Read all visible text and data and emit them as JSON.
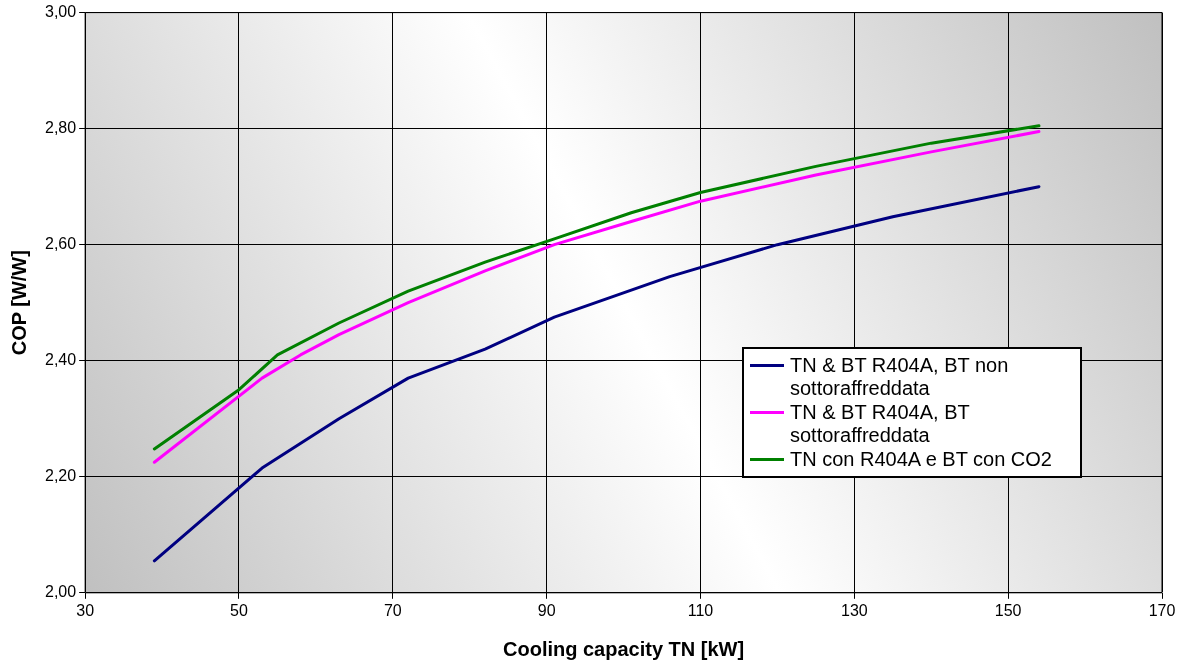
{
  "chart_data": {
    "type": "line",
    "xlabel": "Cooling capacity TN [kW]",
    "ylabel": "COP [W/W]",
    "xlim": [
      30,
      170
    ],
    "xticks": [
      30,
      50,
      70,
      90,
      110,
      130,
      150,
      170
    ],
    "ylim": [
      2,
      3
    ],
    "yticks": [
      {
        "value": 2,
        "label": "2,00"
      },
      {
        "value": 2.2,
        "label": "2,20"
      },
      {
        "value": 2.4,
        "label": "2,40"
      },
      {
        "value": 2.6,
        "label": "2,60"
      },
      {
        "value": 2.8,
        "label": "2,80"
      },
      {
        "value": 3,
        "label": "3,00"
      }
    ],
    "grid": true,
    "legend": "right",
    "marker": "none",
    "line_style": "solid",
    "series": [
      {
        "name": "TN & BT R404A, BT non sottoraffreddata",
        "color": "#000080",
        "x": [
          39,
          53,
          63,
          72,
          82,
          91,
          106,
          120,
          135,
          154
        ],
        "values": [
          2.055,
          2.215,
          2.3,
          2.37,
          2.42,
          2.475,
          2.545,
          2.6,
          2.648,
          2.7
        ]
      },
      {
        "name": "TN & BT R404A, BT sottoraffreddata",
        "color": "#ff00ff",
        "x": [
          39,
          53,
          58,
          63,
          72,
          82,
          91,
          101,
          110,
          125,
          140,
          154
        ],
        "values": [
          2.225,
          2.37,
          2.41,
          2.445,
          2.5,
          2.555,
          2.6,
          2.64,
          2.675,
          2.72,
          2.76,
          2.795
        ]
      },
      {
        "name": "TN con R404A e BT con CO2",
        "color": "#008000",
        "x": [
          39,
          50,
          55,
          63,
          72,
          82,
          91,
          101,
          110,
          125,
          140,
          154
        ],
        "values": [
          2.248,
          2.35,
          2.41,
          2.465,
          2.52,
          2.57,
          2.61,
          2.655,
          2.69,
          2.735,
          2.775,
          2.805
        ]
      }
    ]
  }
}
